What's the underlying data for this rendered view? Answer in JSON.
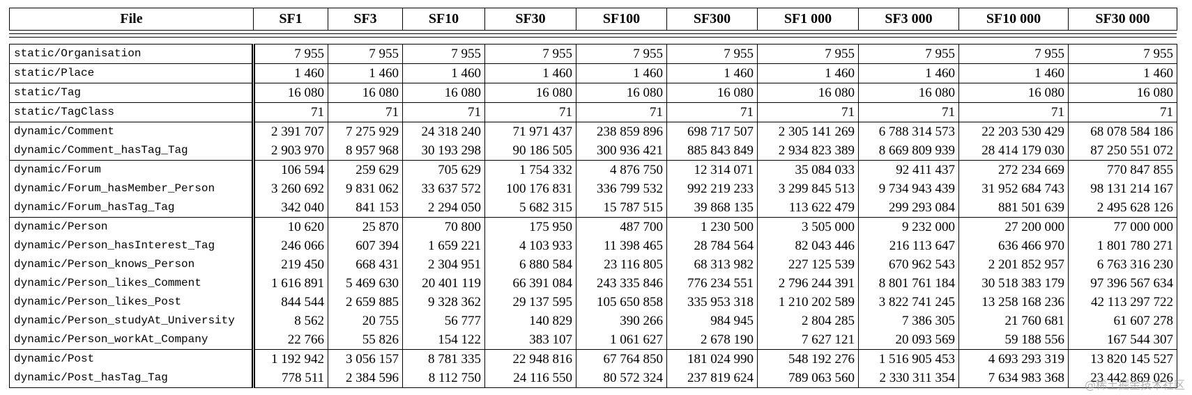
{
  "table": {
    "header": [
      "File",
      "SF1",
      "SF3",
      "SF10",
      "SF30",
      "SF100",
      "SF300",
      "SF1 000",
      "SF3 000",
      "SF10 000",
      "SF30 000"
    ],
    "groups": [
      [
        [
          "static/Organisation",
          "7 955",
          "7 955",
          "7 955",
          "7 955",
          "7 955",
          "7 955",
          "7 955",
          "7 955",
          "7 955",
          "7 955"
        ]
      ],
      [
        [
          "static/Place",
          "1 460",
          "1 460",
          "1 460",
          "1 460",
          "1 460",
          "1 460",
          "1 460",
          "1 460",
          "1 460",
          "1 460"
        ]
      ],
      [
        [
          "static/Tag",
          "16 080",
          "16 080",
          "16 080",
          "16 080",
          "16 080",
          "16 080",
          "16 080",
          "16 080",
          "16 080",
          "16 080"
        ]
      ],
      [
        [
          "static/TagClass",
          "71",
          "71",
          "71",
          "71",
          "71",
          "71",
          "71",
          "71",
          "71",
          "71"
        ]
      ],
      [
        [
          "dynamic/Comment",
          "2 391 707",
          "7 275 929",
          "24 318 240",
          "71 971 437",
          "238 859 896",
          "698 717 507",
          "2 305 141 269",
          "6 788 314 573",
          "22 203 530 429",
          "68 078 584 186"
        ],
        [
          "dynamic/Comment_hasTag_Tag",
          "2 903 970",
          "8 957 968",
          "30 193 298",
          "90 186 505",
          "300 936 421",
          "885 843 849",
          "2 934 823 389",
          "8 669 809 939",
          "28 414 179 030",
          "87 250 551 072"
        ]
      ],
      [
        [
          "dynamic/Forum",
          "106 594",
          "259 629",
          "705 629",
          "1 754 332",
          "4 876 750",
          "12 314 071",
          "35 084 033",
          "92 411 437",
          "272 234 669",
          "770 847 855"
        ],
        [
          "dynamic/Forum_hasMember_Person",
          "3 260 692",
          "9 831 062",
          "33 637 572",
          "100 176 831",
          "336 799 532",
          "992 219 233",
          "3 299 845 513",
          "9 734 943 439",
          "31 952 684 743",
          "98 131 214 167"
        ],
        [
          "dynamic/Forum_hasTag_Tag",
          "342 040",
          "841 153",
          "2 294 050",
          "5 682 315",
          "15 787 515",
          "39 868 135",
          "113 622 479",
          "299 293 084",
          "881 501 639",
          "2 495 628 126"
        ]
      ],
      [
        [
          "dynamic/Person",
          "10 620",
          "25 870",
          "70 800",
          "175 950",
          "487 700",
          "1 230 500",
          "3 505 000",
          "9 232 000",
          "27 200 000",
          "77 000 000"
        ],
        [
          "dynamic/Person_hasInterest_Tag",
          "246 066",
          "607 394",
          "1 659 221",
          "4 103 933",
          "11 398 465",
          "28 784 564",
          "82 043 446",
          "216 113 647",
          "636 466 970",
          "1 801 780 271"
        ],
        [
          "dynamic/Person_knows_Person",
          "219 450",
          "668 431",
          "2 304 951",
          "6 880 584",
          "23 116 805",
          "68 313 982",
          "227 125 539",
          "670 962 543",
          "2 201 852 957",
          "6 763 316 230"
        ],
        [
          "dynamic/Person_likes_Comment",
          "1 616 891",
          "5 469 630",
          "20 401 119",
          "66 391 084",
          "243 335 846",
          "776 234 551",
          "2 796 244 391",
          "8 801 761 184",
          "30 518 383 179",
          "97 396 567 634"
        ],
        [
          "dynamic/Person_likes_Post",
          "844 544",
          "2 659 885",
          "9 328 362",
          "29 137 595",
          "105 650 858",
          "335 953 318",
          "1 210 202 589",
          "3 822 741 245",
          "13 258 168 236",
          "42 113 297 722"
        ],
        [
          "dynamic/Person_studyAt_University",
          "8 562",
          "20 755",
          "56 777",
          "140 829",
          "390 266",
          "984 945",
          "2 804 285",
          "7 386 305",
          "21 760 681",
          "61 607 278"
        ],
        [
          "dynamic/Person_workAt_Company",
          "22 766",
          "55 826",
          "154 122",
          "383 107",
          "1 061 627",
          "2 678 190",
          "7 627 121",
          "20 093 569",
          "59 188 556",
          "167 544 307"
        ]
      ],
      [
        [
          "dynamic/Post",
          "1 192 942",
          "3 056 157",
          "8 781 335",
          "22 948 816",
          "67 764 850",
          "181 024 990",
          "548 192 276",
          "1 516 905 453",
          "4 693 293 319",
          "13 820 145 527"
        ],
        [
          "dynamic/Post_hasTag_Tag",
          "778 511",
          "2 384 596",
          "8 112 750",
          "24 116 550",
          "80 572 324",
          "237 819 624",
          "789 063 560",
          "2 330 311 354",
          "7 634 983 368",
          "23 442 869 026"
        ]
      ]
    ]
  },
  "watermark": "@稀土掘金技术社区"
}
